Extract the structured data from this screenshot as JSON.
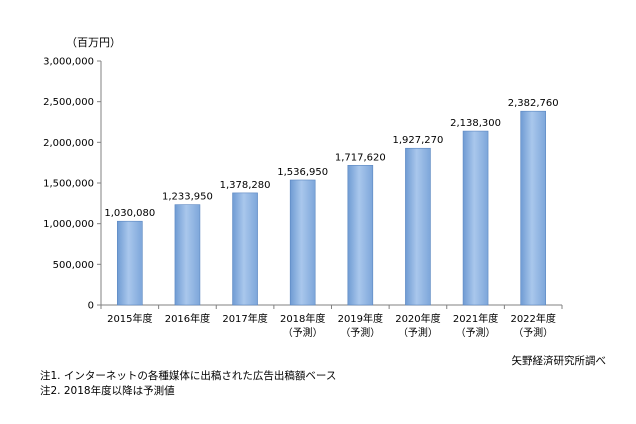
{
  "unit_label": "（百万円）",
  "source": "矢野経済研究所調べ",
  "notes": [
    "注1. インターネットの各種媒体に出稿された広告出稿額ベース",
    "注2. 2018年度以降は予測値"
  ],
  "chart_data": {
    "type": "bar",
    "categories": [
      [
        "2015年度"
      ],
      [
        "2016年度"
      ],
      [
        "2017年度"
      ],
      [
        "2018年度",
        "（予測）"
      ],
      [
        "2019年度",
        "（予測）"
      ],
      [
        "2020年度",
        "（予測）"
      ],
      [
        "2021年度",
        "（予測）"
      ],
      [
        "2022年度",
        "（予測）"
      ]
    ],
    "values": [
      1030080,
      1233950,
      1378280,
      1536950,
      1717620,
      1927270,
      2138300,
      2382760
    ],
    "data_labels": [
      "1,030,080",
      "1,233,950",
      "1,378,280",
      "1,536,950",
      "1,717,620",
      "1,927,270",
      "2,138,300",
      "2,382,760"
    ],
    "ylim": [
      0,
      3000000
    ],
    "yticks": [
      0,
      500000,
      1000000,
      1500000,
      2000000,
      2500000,
      3000000
    ],
    "ytick_labels": [
      "0",
      "500,000",
      "1,000,000",
      "1,500,000",
      "2,000,000",
      "2,500,000",
      "3,000,000"
    ],
    "bar_color": "#8eb4e3",
    "grid": false,
    "legend": "none"
  }
}
